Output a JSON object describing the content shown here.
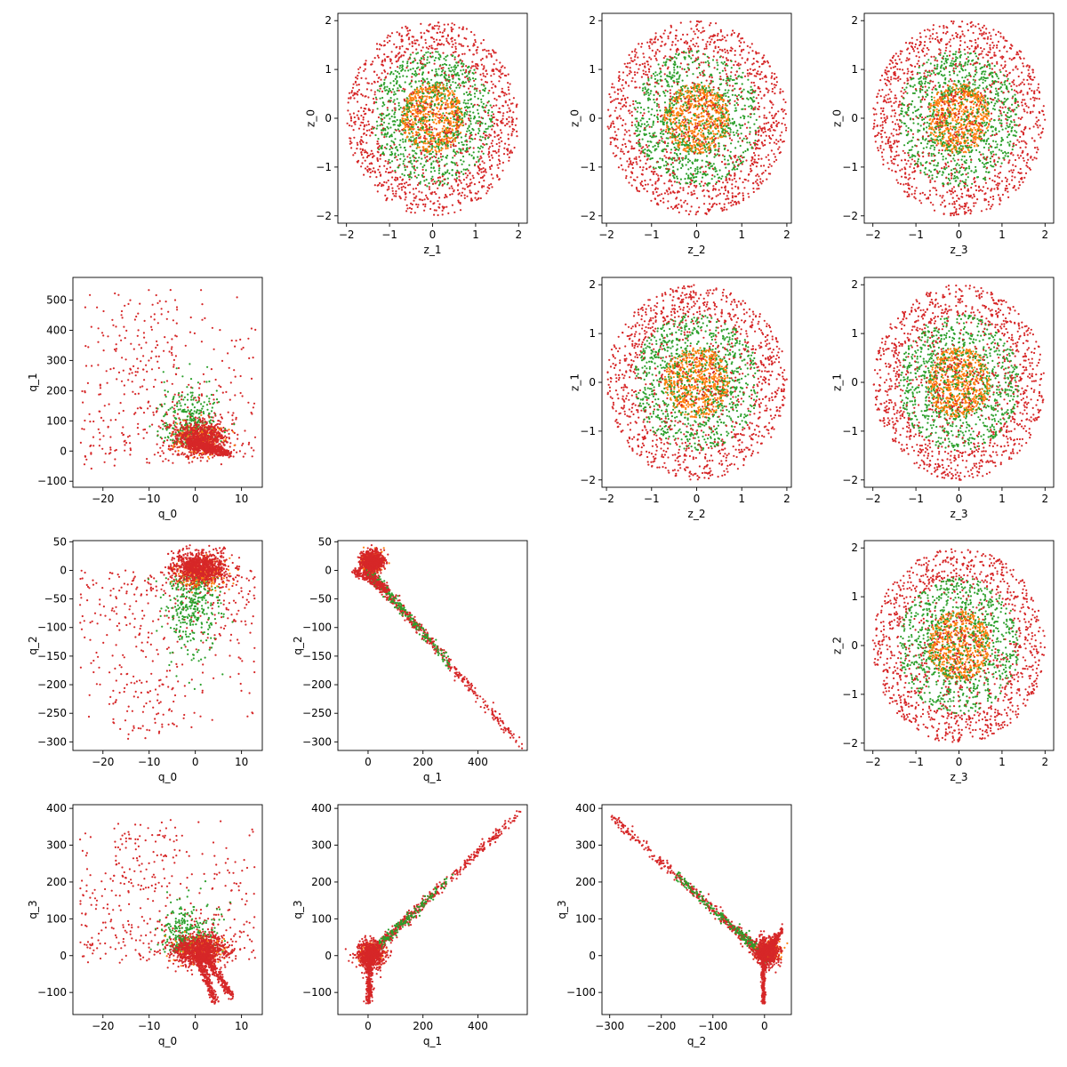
{
  "chart_data": [
    {
      "type": "scatter",
      "row": 0,
      "col": 1,
      "xlabel": "z_1",
      "ylabel": "z_0",
      "xlim": [
        -2.2,
        2.2
      ],
      "ylim": [
        -2.15,
        2.15
      ],
      "xticks": [
        -2,
        -1,
        0,
        1,
        2
      ],
      "yticks": [
        -2,
        -1,
        0,
        1,
        2
      ],
      "gen": "ring"
    },
    {
      "type": "scatter",
      "row": 0,
      "col": 2,
      "xlabel": "z_2",
      "ylabel": "z_0",
      "xlim": [
        -2.1,
        2.1
      ],
      "ylim": [
        -2.15,
        2.15
      ],
      "xticks": [
        -2,
        -1,
        0,
        1,
        2
      ],
      "yticks": [
        -2,
        -1,
        0,
        1,
        2
      ],
      "gen": "ring"
    },
    {
      "type": "scatter",
      "row": 0,
      "col": 3,
      "xlabel": "z_3",
      "ylabel": "z_0",
      "xlim": [
        -2.2,
        2.2
      ],
      "ylim": [
        -2.15,
        2.15
      ],
      "xticks": [
        -2,
        -1,
        0,
        1,
        2
      ],
      "yticks": [
        -2,
        -1,
        0,
        1,
        2
      ],
      "gen": "ring"
    },
    {
      "type": "scatter",
      "row": 1,
      "col": 0,
      "xlabel": "q_0",
      "ylabel": "q_1",
      "xlim": [
        -26.5,
        14.5
      ],
      "ylim": [
        -120,
        575
      ],
      "xticks": [
        -20,
        -10,
        0,
        10
      ],
      "yticks": [
        -100,
        0,
        100,
        200,
        300,
        400,
        500
      ],
      "gen": "q0q1"
    },
    {
      "type": "scatter",
      "row": 1,
      "col": 2,
      "xlabel": "z_2",
      "ylabel": "z_1",
      "xlim": [
        -2.1,
        2.1
      ],
      "ylim": [
        -2.15,
        2.15
      ],
      "xticks": [
        -2,
        -1,
        0,
        1,
        2
      ],
      "yticks": [
        -2,
        -1,
        0,
        1,
        2
      ],
      "gen": "ring"
    },
    {
      "type": "scatter",
      "row": 1,
      "col": 3,
      "xlabel": "z_3",
      "ylabel": "z_1",
      "xlim": [
        -2.2,
        2.2
      ],
      "ylim": [
        -2.15,
        2.15
      ],
      "xticks": [
        -2,
        -1,
        0,
        1,
        2
      ],
      "yticks": [
        -2,
        -1,
        0,
        1,
        2
      ],
      "gen": "ring"
    },
    {
      "type": "scatter",
      "row": 2,
      "col": 0,
      "xlabel": "q_0",
      "ylabel": "q_2",
      "xlim": [
        -26.5,
        14.5
      ],
      "ylim": [
        -315,
        52
      ],
      "xticks": [
        -20,
        -10,
        0,
        10
      ],
      "yticks": [
        -300,
        -250,
        -200,
        -150,
        -100,
        -50,
        0,
        50
      ],
      "gen": "q0q2"
    },
    {
      "type": "scatter",
      "row": 2,
      "col": 1,
      "xlabel": "q_1",
      "ylabel": "q_2",
      "xlim": [
        -110,
        580
      ],
      "ylim": [
        -315,
        52
      ],
      "xticks": [
        0,
        200,
        400
      ],
      "yticks": [
        -300,
        -250,
        -200,
        -150,
        -100,
        -50,
        0,
        50
      ],
      "gen": "q1q2"
    },
    {
      "type": "scatter",
      "row": 2,
      "col": 3,
      "xlabel": "z_3",
      "ylabel": "z_2",
      "xlim": [
        -2.2,
        2.2
      ],
      "ylim": [
        -2.15,
        2.15
      ],
      "xticks": [
        -2,
        -1,
        0,
        1,
        2
      ],
      "yticks": [
        -2,
        -1,
        0,
        1,
        2
      ],
      "gen": "ring"
    },
    {
      "type": "scatter",
      "row": 3,
      "col": 0,
      "xlabel": "q_0",
      "ylabel": "q_3",
      "xlim": [
        -26.5,
        14.5
      ],
      "ylim": [
        -160,
        410
      ],
      "xticks": [
        -20,
        -10,
        0,
        10
      ],
      "yticks": [
        -100,
        0,
        100,
        200,
        300,
        400
      ],
      "gen": "q0q3"
    },
    {
      "type": "scatter",
      "row": 3,
      "col": 1,
      "xlabel": "q_1",
      "ylabel": "q_3",
      "xlim": [
        -110,
        580
      ],
      "ylim": [
        -160,
        410
      ],
      "xticks": [
        0,
        200,
        400
      ],
      "yticks": [
        -100,
        0,
        100,
        200,
        300,
        400
      ],
      "gen": "q1q3"
    },
    {
      "type": "scatter",
      "row": 3,
      "col": 2,
      "xlabel": "q_2",
      "ylabel": "q_3",
      "xlim": [
        -315,
        52
      ],
      "ylim": [
        -160,
        410
      ],
      "xticks": [
        -300,
        -200,
        -100,
        0
      ],
      "yticks": [
        -100,
        0,
        100,
        200,
        300,
        400
      ],
      "gen": "q2q3"
    }
  ],
  "colors": {
    "inner": "#ff7f0e",
    "middle": "#2ca02c",
    "outer": "#d62728"
  }
}
